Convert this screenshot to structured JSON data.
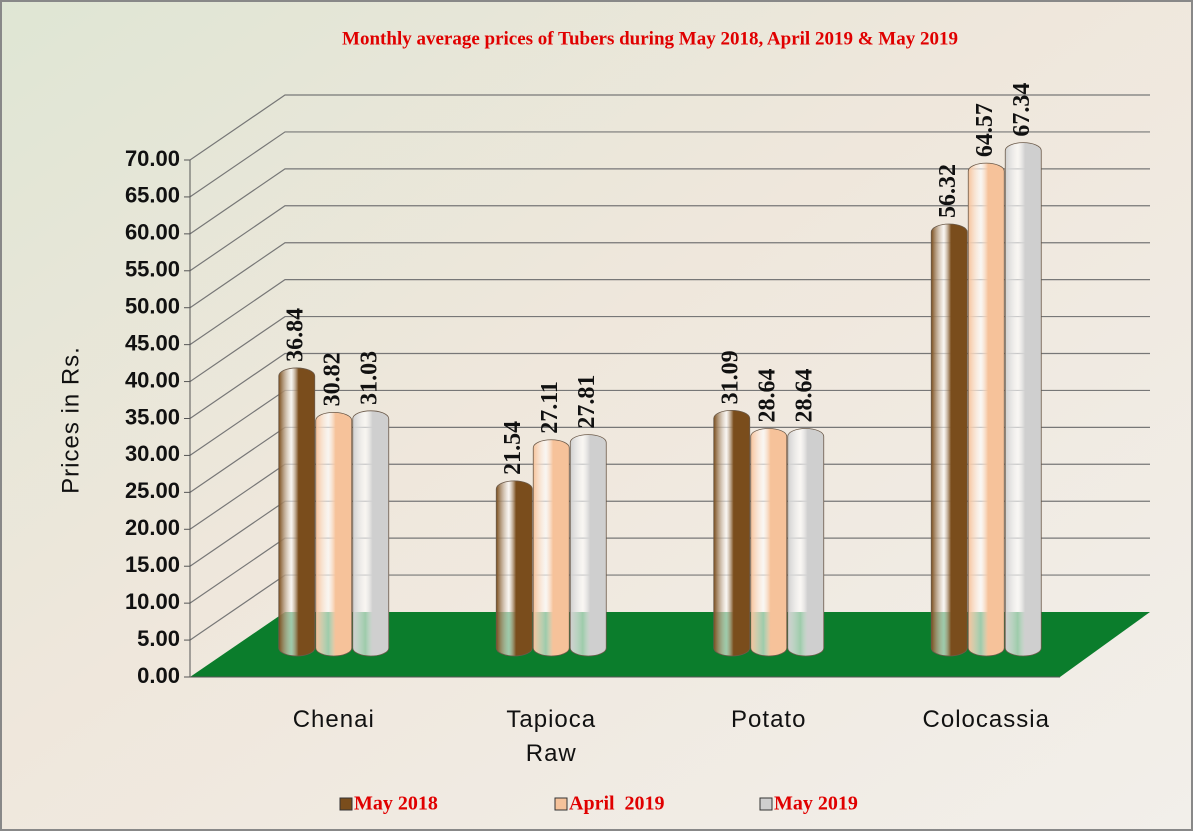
{
  "chart_data": {
    "type": "bar",
    "title": "Monthly average prices of Tubers during  May 2018,  April  2019  & May 2019",
    "y_label": "Prices in Rs.",
    "categories": [
      "Chenai",
      "Tapioca Raw",
      "Potato",
      "Colocassia"
    ],
    "series": [
      {
        "name": "May 2018",
        "color": "#7a4d1c",
        "values": [
          36.84,
          21.54,
          31.09,
          56.32
        ]
      },
      {
        "name": "April  2019",
        "color": "#f6c29a",
        "values": [
          30.82,
          27.11,
          28.64,
          64.57
        ]
      },
      {
        "name": "May 2019",
        "color": "#cfcfcf",
        "values": [
          31.03,
          27.81,
          28.64,
          67.34
        ]
      }
    ],
    "ylim": [
      0,
      70
    ],
    "yticks": [
      {
        "value": 0,
        "label": "0.00"
      },
      {
        "value": 5,
        "label": "5.00"
      },
      {
        "value": 10,
        "label": "10.00"
      },
      {
        "value": 15,
        "label": "15.00"
      },
      {
        "value": 20,
        "label": "20.00"
      },
      {
        "value": 25,
        "label": "25.00"
      },
      {
        "value": 30,
        "label": "30.00"
      },
      {
        "value": 35,
        "label": "35.00"
      },
      {
        "value": 40,
        "label": "40.00"
      },
      {
        "value": 45,
        "label": "45.00"
      },
      {
        "value": 50,
        "label": "50.00"
      },
      {
        "value": 55,
        "label": "55.00"
      },
      {
        "value": 60,
        "label": "60.00"
      },
      {
        "value": 65,
        "label": "65.00"
      },
      {
        "value": 70,
        "label": "70.00"
      }
    ],
    "grid": true,
    "floor_color": "#0b7d2c",
    "legend": "bottom"
  }
}
